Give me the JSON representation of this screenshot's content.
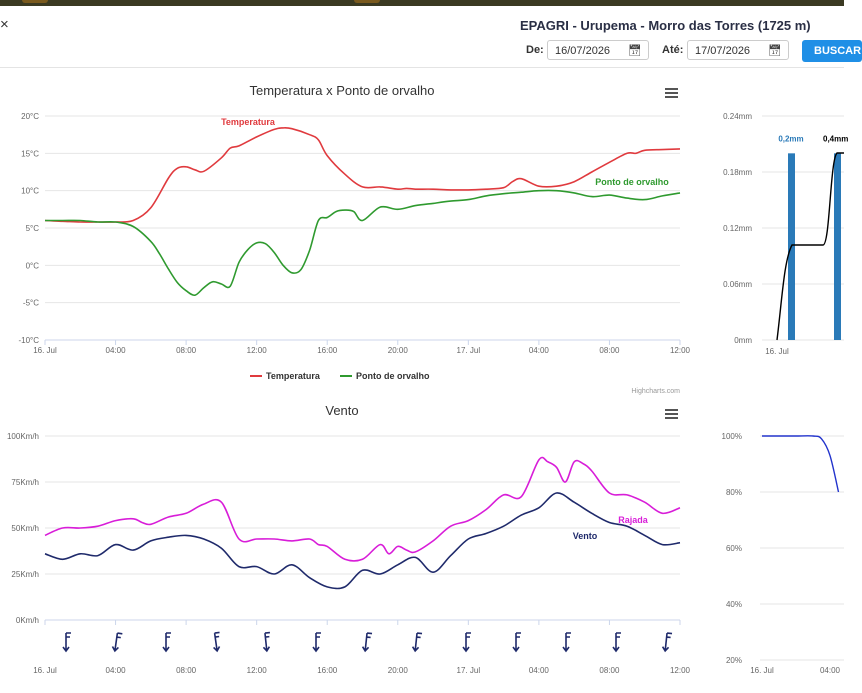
{
  "close_glyph": "×",
  "station_title": "EPAGRI - Urupema - Morro das Torres (1725 m)",
  "filters": {
    "from_label": "De:",
    "from_value": "16/07/2026",
    "to_label": "Até:",
    "to_value": "17/07/2026",
    "search_button": "BUSCAR",
    "calendar_icon": "calendar-icon"
  },
  "colors": {
    "temperature": "#e03a3e",
    "dewpoint": "#2f9a2f",
    "gust": "#d81dd8",
    "wind": "#1f2a6b",
    "rain_bar": "#2a7ab8",
    "humidity": "#2233cc",
    "button": "#1f8fe6"
  },
  "credits": "Highcharts.com",
  "menu_icon": "hamburger-menu-icon",
  "chart_data": [
    {
      "type": "line",
      "title": "Temperatura x Ponto de orvalho",
      "x_ticks": [
        "16. Jul",
        "04:00",
        "08:00",
        "12:00",
        "16:00",
        "20:00",
        "17. Jul",
        "04:00",
        "08:00",
        "12:00"
      ],
      "y_ticks": [
        "-10°C",
        "-5°C",
        "0°C",
        "5°C",
        "10°C",
        "15°C",
        "20°C"
      ],
      "ylim": [
        -10,
        20
      ],
      "x_unit": "hours since 16. Jul 00:00",
      "xlim": [
        0,
        36
      ],
      "series": [
        {
          "name": "Temperatura",
          "color": "#e03a3e",
          "x": [
            0,
            1,
            2,
            3,
            4,
            5,
            6,
            7,
            7.5,
            8,
            8.5,
            9,
            10,
            10.5,
            11,
            12,
            13,
            13.5,
            14,
            15,
            15.5,
            16,
            17,
            18,
            19,
            20,
            20.5,
            21,
            22,
            23,
            24,
            25,
            26,
            26.5,
            27,
            28,
            29,
            30,
            31,
            32,
            33,
            33.5,
            34,
            35,
            36
          ],
          "y": [
            6,
            5.9,
            5.8,
            5.8,
            5.8,
            6,
            7.7,
            11.7,
            13,
            13.2,
            12.8,
            12.6,
            14.4,
            15.7,
            16,
            17.2,
            18.2,
            18.4,
            18.3,
            17.5,
            16.8,
            14.7,
            12.2,
            10.5,
            10.5,
            10.2,
            10.3,
            10.2,
            10.2,
            10.1,
            10.1,
            10.2,
            10.4,
            11.2,
            11.6,
            10.6,
            10.6,
            11.2,
            12.5,
            13.8,
            15,
            15,
            15.4,
            15.5,
            15.6
          ]
        },
        {
          "name": "Ponto de orvalho",
          "color": "#2f9a2f",
          "x": [
            0,
            1,
            2,
            3,
            4,
            5,
            6,
            6.5,
            7,
            7.5,
            8,
            8.5,
            9,
            9.5,
            10,
            10.5,
            11,
            11.5,
            12,
            12.5,
            13,
            13.5,
            14,
            14.5,
            15,
            15.5,
            16,
            16.5,
            17,
            17.5,
            18,
            19,
            20,
            21,
            22,
            23,
            24,
            25,
            26,
            27,
            28,
            29,
            30,
            31,
            32,
            33,
            34,
            35,
            36
          ],
          "y": [
            6,
            6,
            6,
            5.8,
            5.8,
            5.2,
            3.2,
            1.5,
            -0.5,
            -2.3,
            -3.4,
            -4,
            -3,
            -2.2,
            -2.5,
            -2.8,
            0.4,
            2.1,
            3,
            2.9,
            1.7,
            0,
            -1,
            -0.6,
            2,
            6,
            6.4,
            7.2,
            7.4,
            7.2,
            6,
            7.8,
            7.5,
            8,
            8.3,
            8.6,
            8.8,
            9.3,
            9.6,
            9.8,
            10,
            10,
            9.7,
            9.2,
            9.4,
            9,
            8.8,
            9.3,
            9.7
          ]
        }
      ],
      "labels": {
        "Temperatura": "Temperatura",
        "Ponto de orvalho": "Ponto de orvalho"
      },
      "legend": [
        "Temperatura",
        "Ponto de orvalho"
      ],
      "legend_position": "bottom"
    },
    {
      "type": "bar",
      "title": "",
      "y_ticks": [
        "0mm",
        "0.06mm",
        "0.12mm",
        "0.18mm",
        "0.24mm"
      ],
      "ylim": [
        0,
        0.24
      ],
      "x_ticks": [
        "16. Jul"
      ],
      "bar_labels": [
        "0,2mm",
        "0,4mm"
      ],
      "cumulative_line_visible": true
    },
    {
      "type": "line",
      "title": "Vento",
      "x_ticks": [
        "16. Jul",
        "04:00",
        "08:00",
        "12:00",
        "16:00",
        "20:00",
        "17. Jul",
        "04:00",
        "08:00",
        "12:00"
      ],
      "y_ticks": [
        "0Km/h",
        "25Km/h",
        "50Km/h",
        "75Km/h",
        "100Km/h"
      ],
      "ylim": [
        0,
        100
      ],
      "x_unit": "hours since 16. Jul 00:00",
      "xlim": [
        0,
        36
      ],
      "series": [
        {
          "name": "Rajada",
          "color": "#d81dd8",
          "x": [
            0,
            1,
            2,
            3,
            4,
            5,
            5.5,
            6,
            7,
            8,
            9,
            10,
            11,
            12,
            13,
            14,
            15,
            15.5,
            16,
            17,
            18,
            19,
            19.5,
            20,
            20.5,
            21,
            22,
            23,
            24,
            25,
            26,
            27,
            28,
            28.5,
            29,
            29.5,
            30,
            30.5,
            31,
            32,
            33,
            34,
            35,
            36
          ],
          "y": [
            46,
            50,
            50,
            51,
            54,
            55,
            53,
            52,
            56,
            58,
            63,
            64,
            44,
            44,
            44,
            43,
            44,
            41,
            40,
            33,
            33,
            41,
            36,
            40,
            38,
            37,
            43,
            51,
            54,
            60,
            68,
            67,
            87,
            86,
            83,
            75,
            86,
            85,
            81,
            69,
            68,
            64,
            58,
            61
          ]
        },
        {
          "name": "Vento",
          "color": "#1f2a6b",
          "x": [
            0,
            1,
            2,
            3,
            4,
            5,
            6,
            7,
            8,
            9,
            10,
            11,
            12,
            13,
            14,
            15,
            16,
            17,
            18,
            19,
            20,
            21,
            22,
            23,
            24,
            25,
            26,
            27,
            28,
            29,
            30,
            31,
            32,
            33,
            34,
            35,
            36
          ],
          "y": [
            36,
            33,
            36,
            35,
            41,
            38,
            43,
            45,
            46,
            44,
            39,
            29,
            29,
            25,
            30,
            23,
            18,
            18,
            27,
            25,
            30,
            34,
            26,
            35,
            44,
            47,
            51,
            57,
            61,
            69,
            64,
            58,
            53,
            51,
            46,
            41,
            42
          ]
        }
      ],
      "labels": {
        "Rajada": "Rajada",
        "Vento": "Vento"
      },
      "wind_barb_count": 13,
      "wind_barb_icon": "wind-barb-icon"
    },
    {
      "type": "line",
      "title": "",
      "y_ticks": [
        "20%",
        "40%",
        "60%",
        "80%",
        "100%"
      ],
      "ylim": [
        20,
        100
      ],
      "x_ticks": [
        "16. Jul",
        "04:00"
      ],
      "series": [
        {
          "color": "#2233cc",
          "x": [
            0,
            1,
            2,
            3,
            3.5,
            4,
            4.5
          ],
          "y": [
            100,
            100,
            100,
            100,
            99,
            93,
            80
          ]
        }
      ]
    }
  ]
}
